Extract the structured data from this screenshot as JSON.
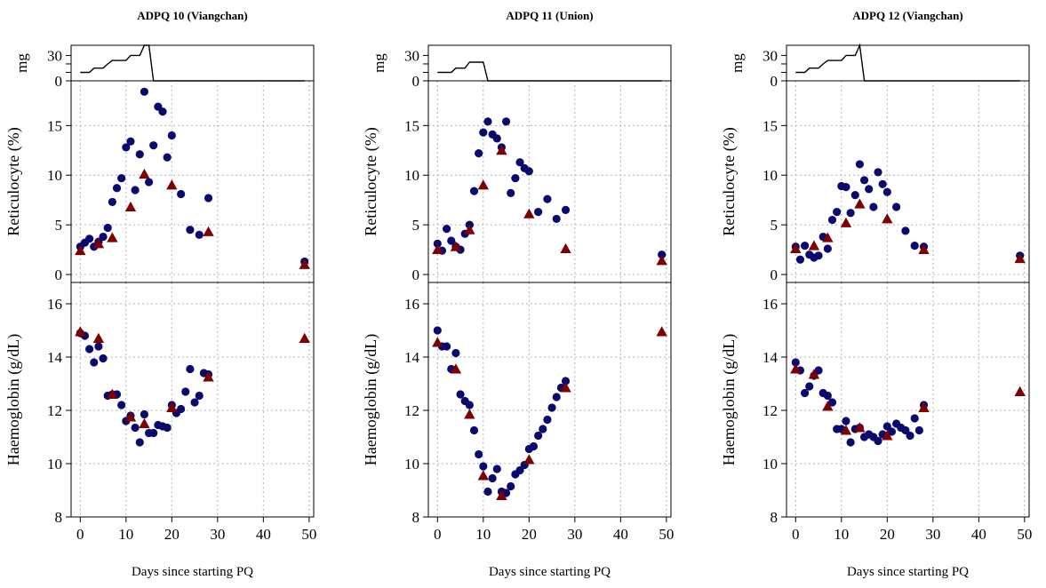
{
  "colors": {
    "high_dose_marker": "#7f0000",
    "low_dose_marker": "#0a0a6e",
    "dose_line": "#000000",
    "grid": "#b4b4b4",
    "axis": "#000000"
  },
  "chart_data": [
    {
      "type": "scatter",
      "title": "ADPQ 10 (Viangchan)",
      "xlabel": "Days since starting PQ",
      "xlim": [
        -2,
        51
      ],
      "xticks": [
        0,
        10,
        20,
        30,
        40,
        50
      ],
      "panels": {
        "dose": {
          "ylabel": "mg",
          "ylim": [
            0,
            42
          ],
          "yticks": [
            0,
            30
          ],
          "line": [
            [
              0,
              10
            ],
            [
              2,
              10
            ],
            [
              3,
              15
            ],
            [
              5,
              15
            ],
            [
              6,
              20
            ],
            [
              7,
              24
            ],
            [
              10,
              24
            ],
            [
              11,
              30
            ],
            [
              13,
              30
            ],
            [
              14,
              42
            ],
            [
              15,
              42
            ],
            [
              16,
              0
            ],
            [
              49,
              0
            ]
          ]
        },
        "reticulocyte": {
          "ylabel": "Reticulocyte (%)",
          "ylim": [
            -0.8,
            19.5
          ],
          "yticks": [
            0,
            5,
            10,
            15
          ],
          "circles": [
            [
              0,
              2.8
            ],
            [
              1,
              3.2
            ],
            [
              2,
              3.6
            ],
            [
              3,
              2.8
            ],
            [
              4,
              3.3
            ],
            [
              5,
              3.8
            ],
            [
              6,
              4.7
            ],
            [
              7,
              7.3
            ],
            [
              8,
              8.7
            ],
            [
              9,
              9.7
            ],
            [
              10,
              12.8
            ],
            [
              11,
              13.4
            ],
            [
              12,
              8.5
            ],
            [
              13,
              12.1
            ],
            [
              14,
              18.4
            ],
            [
              15,
              9.3
            ],
            [
              16,
              13.0
            ],
            [
              17,
              16.9
            ],
            [
              18,
              16.4
            ],
            [
              19,
              11.8
            ],
            [
              20,
              14.0
            ],
            [
              22,
              8.1
            ],
            [
              24,
              4.5
            ],
            [
              26,
              4.0
            ],
            [
              28,
              7.7
            ],
            [
              49,
              1.3
            ]
          ],
          "triangles": [
            [
              0,
              2.4
            ],
            [
              4,
              3.1
            ],
            [
              7,
              3.7
            ],
            [
              11,
              6.8
            ],
            [
              14,
              10.1
            ],
            [
              20,
              9.0
            ],
            [
              28,
              4.3
            ],
            [
              49,
              1.0
            ]
          ]
        },
        "haemoglobin": {
          "ylabel": "Haemoglobin (g/dL)",
          "ylim": [
            8,
            16.8
          ],
          "yticks": [
            8,
            10,
            12,
            14,
            16
          ],
          "circles": [
            [
              0,
              14.9
            ],
            [
              1,
              14.8
            ],
            [
              2,
              14.3
            ],
            [
              3,
              13.8
            ],
            [
              4,
              14.4
            ],
            [
              5,
              13.95
            ],
            [
              6,
              12.55
            ],
            [
              7,
              12.6
            ],
            [
              8,
              12.6
            ],
            [
              9,
              12.2
            ],
            [
              10,
              11.6
            ],
            [
              11,
              11.8
            ],
            [
              12,
              11.35
            ],
            [
              13,
              10.8
            ],
            [
              14,
              11.85
            ],
            [
              15,
              11.15
            ],
            [
              16,
              11.15
            ],
            [
              17,
              11.45
            ],
            [
              18,
              11.4
            ],
            [
              19,
              11.35
            ],
            [
              20,
              12.2
            ],
            [
              21,
              11.9
            ],
            [
              22,
              12.05
            ],
            [
              23,
              12.7
            ],
            [
              24,
              13.55
            ],
            [
              25,
              12.3
            ],
            [
              26,
              12.55
            ],
            [
              27,
              13.4
            ],
            [
              28,
              13.35
            ]
          ],
          "triangles": [
            [
              0,
              14.95
            ],
            [
              4,
              14.7
            ],
            [
              7,
              12.6
            ],
            [
              11,
              11.75
            ],
            [
              14,
              11.5
            ],
            [
              20,
              12.1
            ],
            [
              28,
              13.25
            ],
            [
              49,
              14.7
            ]
          ]
        }
      }
    },
    {
      "type": "scatter",
      "title": "ADPQ 11 (Union)",
      "xlabel": "Days since starting PQ",
      "xlim": [
        -2,
        51
      ],
      "xticks": [
        0,
        10,
        20,
        30,
        40,
        50
      ],
      "panels": {
        "dose": {
          "ylabel": "mg",
          "ylim": [
            0,
            42
          ],
          "yticks": [
            0,
            30
          ],
          "line": [
            [
              0,
              10
            ],
            [
              3,
              10
            ],
            [
              4,
              15
            ],
            [
              6,
              15
            ],
            [
              7,
              22
            ],
            [
              10,
              22
            ],
            [
              11,
              0
            ],
            [
              49,
              0
            ]
          ]
        },
        "reticulocyte": {
          "ylabel": "Reticulocyte (%)",
          "ylim": [
            -0.8,
            19.5
          ],
          "yticks": [
            0,
            5,
            10,
            15
          ],
          "circles": [
            [
              0,
              3.1
            ],
            [
              1,
              2.4
            ],
            [
              2,
              4.6
            ],
            [
              3,
              3.4
            ],
            [
              4,
              2.8
            ],
            [
              5,
              2.5
            ],
            [
              6,
              4.1
            ],
            [
              7,
              5.0
            ],
            [
              8,
              8.4
            ],
            [
              9,
              12.2
            ],
            [
              10,
              14.3
            ],
            [
              11,
              15.4
            ],
            [
              12,
              14.1
            ],
            [
              13,
              13.7
            ],
            [
              14,
              12.8
            ],
            [
              15,
              15.4
            ],
            [
              16,
              8.2
            ],
            [
              17,
              9.7
            ],
            [
              18,
              11.3
            ],
            [
              19,
              10.7
            ],
            [
              20,
              10.4
            ],
            [
              22,
              6.3
            ],
            [
              24,
              7.6
            ],
            [
              26,
              5.6
            ],
            [
              28,
              6.5
            ],
            [
              49,
              2.0
            ]
          ],
          "triangles": [
            [
              0,
              2.5
            ],
            [
              4,
              2.8
            ],
            [
              7,
              4.5
            ],
            [
              10,
              9.0
            ],
            [
              14,
              12.5
            ],
            [
              20,
              6.1
            ],
            [
              28,
              2.6
            ],
            [
              49,
              1.4
            ]
          ]
        },
        "haemoglobin": {
          "ylabel": "Haemoglobin (g/dL)",
          "ylim": [
            8,
            16.8
          ],
          "yticks": [
            8,
            10,
            12,
            14,
            16
          ],
          "circles": [
            [
              0,
              15.0
            ],
            [
              1,
              14.4
            ],
            [
              2,
              14.4
            ],
            [
              3,
              13.55
            ],
            [
              4,
              14.15
            ],
            [
              5,
              12.6
            ],
            [
              6,
              12.35
            ],
            [
              7,
              12.2
            ],
            [
              8,
              11.25
            ],
            [
              9,
              10.35
            ],
            [
              10,
              9.9
            ],
            [
              11,
              8.95
            ],
            [
              12,
              9.45
            ],
            [
              13,
              9.8
            ],
            [
              14,
              8.95
            ],
            [
              15,
              8.9
            ],
            [
              16,
              9.15
            ],
            [
              17,
              9.6
            ],
            [
              18,
              9.75
            ],
            [
              19,
              9.95
            ],
            [
              20,
              10.55
            ],
            [
              21,
              10.65
            ],
            [
              22,
              11.05
            ],
            [
              23,
              11.3
            ],
            [
              24,
              11.65
            ],
            [
              25,
              12.1
            ],
            [
              26,
              12.5
            ],
            [
              27,
              12.85
            ],
            [
              28,
              13.1
            ]
          ],
          "triangles": [
            [
              0,
              14.55
            ],
            [
              4,
              13.55
            ],
            [
              7,
              11.85
            ],
            [
              10,
              9.55
            ],
            [
              14,
              8.8
            ],
            [
              20,
              10.15
            ],
            [
              28,
              12.85
            ],
            [
              49,
              14.95
            ]
          ]
        }
      }
    },
    {
      "type": "scatter",
      "title": "ADPQ 12 (Viangchan)",
      "xlabel": "Days since starting PQ",
      "xlim": [
        -2,
        51
      ],
      "xticks": [
        0,
        10,
        20,
        30,
        40,
        50
      ],
      "panels": {
        "dose": {
          "ylabel": "mg",
          "ylim": [
            0,
            42
          ],
          "yticks": [
            0,
            30
          ],
          "line": [
            [
              0,
              10
            ],
            [
              2,
              10
            ],
            [
              3,
              15
            ],
            [
              5,
              15
            ],
            [
              6,
              20
            ],
            [
              7,
              24
            ],
            [
              10,
              24
            ],
            [
              11,
              30
            ],
            [
              13,
              30
            ],
            [
              14,
              42
            ],
            [
              15,
              0
            ],
            [
              49,
              0
            ]
          ]
        },
        "reticulocyte": {
          "ylabel": "Reticulocyte (%)",
          "ylim": [
            -0.8,
            19.5
          ],
          "yticks": [
            0,
            5,
            10,
            15
          ],
          "circles": [
            [
              0,
              2.8
            ],
            [
              1,
              1.5
            ],
            [
              2,
              2.9
            ],
            [
              3,
              2.0
            ],
            [
              4,
              1.7
            ],
            [
              5,
              1.9
            ],
            [
              6,
              3.8
            ],
            [
              7,
              2.6
            ],
            [
              8,
              5.5
            ],
            [
              9,
              6.3
            ],
            [
              10,
              8.9
            ],
            [
              11,
              8.8
            ],
            [
              12,
              6.2
            ],
            [
              13,
              8.0
            ],
            [
              14,
              11.1
            ],
            [
              15,
              9.5
            ],
            [
              16,
              8.6
            ],
            [
              17,
              6.8
            ],
            [
              18,
              10.3
            ],
            [
              19,
              9.1
            ],
            [
              20,
              8.3
            ],
            [
              22,
              6.8
            ],
            [
              24,
              4.4
            ],
            [
              26,
              2.9
            ],
            [
              28,
              2.8
            ],
            [
              49,
              1.9
            ]
          ],
          "triangles": [
            [
              0,
              2.6
            ],
            [
              4,
              2.9
            ],
            [
              7,
              3.7
            ],
            [
              11,
              5.2
            ],
            [
              14,
              7.1
            ],
            [
              20,
              5.6
            ],
            [
              28,
              2.5
            ],
            [
              49,
              1.6
            ]
          ]
        },
        "haemoglobin": {
          "ylabel": "Haemoglobin (g/dL)",
          "ylim": [
            8,
            16.8
          ],
          "yticks": [
            8,
            10,
            12,
            14,
            16
          ],
          "circles": [
            [
              0,
              13.8
            ],
            [
              1,
              13.5
            ],
            [
              2,
              12.65
            ],
            [
              3,
              12.9
            ],
            [
              4,
              13.3
            ],
            [
              5,
              13.5
            ],
            [
              6,
              12.65
            ],
            [
              7,
              12.55
            ],
            [
              8,
              12.3
            ],
            [
              9,
              11.3
            ],
            [
              10,
              11.3
            ],
            [
              11,
              11.6
            ],
            [
              12,
              10.8
            ],
            [
              13,
              11.3
            ],
            [
              14,
              11.35
            ],
            [
              15,
              11.0
            ],
            [
              16,
              11.1
            ],
            [
              17,
              11.0
            ],
            [
              18,
              10.85
            ],
            [
              19,
              11.1
            ],
            [
              20,
              11.4
            ],
            [
              21,
              11.2
            ],
            [
              22,
              11.5
            ],
            [
              23,
              11.35
            ],
            [
              24,
              11.25
            ],
            [
              25,
              11.05
            ],
            [
              26,
              11.7
            ],
            [
              27,
              11.25
            ],
            [
              28,
              12.2
            ]
          ],
          "triangles": [
            [
              0,
              13.55
            ],
            [
              4,
              13.35
            ],
            [
              7,
              12.15
            ],
            [
              11,
              11.25
            ],
            [
              14,
              11.35
            ],
            [
              20,
              11.05
            ],
            [
              28,
              12.1
            ],
            [
              49,
              12.7
            ]
          ]
        }
      }
    }
  ]
}
